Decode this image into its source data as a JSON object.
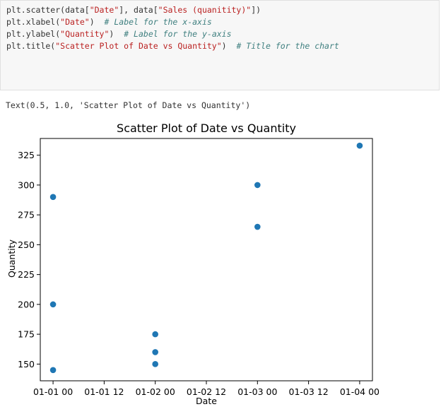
{
  "code_cell": {
    "lines": [
      {
        "parts": [
          {
            "t": "plt.scatter(data[",
            "c": "fn"
          },
          {
            "t": "\"Date\"",
            "c": "str"
          },
          {
            "t": "], data[",
            "c": "fn"
          },
          {
            "t": "\"Sales (quanitity)\"",
            "c": "str"
          },
          {
            "t": "])",
            "c": "fn"
          }
        ]
      },
      {
        "parts": [
          {
            "t": "plt.xlabel(",
            "c": "fn"
          },
          {
            "t": "\"Date\"",
            "c": "str"
          },
          {
            "t": ")  ",
            "c": "fn"
          },
          {
            "t": "# Label for the x-axis",
            "c": "cmt"
          }
        ]
      },
      {
        "parts": [
          {
            "t": "plt.ylabel(",
            "c": "fn"
          },
          {
            "t": "\"Quantity\"",
            "c": "str"
          },
          {
            "t": ")  ",
            "c": "fn"
          },
          {
            "t": "# Label for the y-axis",
            "c": "cmt"
          }
        ]
      },
      {
        "parts": [
          {
            "t": "plt.title(",
            "c": "fn"
          },
          {
            "t": "\"Scatter Plot of Date vs Quantity\"",
            "c": "str"
          },
          {
            "t": ")  ",
            "c": "fn"
          },
          {
            "t": "# Title for the chart",
            "c": "cmt"
          }
        ]
      }
    ]
  },
  "output": {
    "text": "Text(0.5, 1.0, 'Scatter Plot of Date vs Quantity')"
  },
  "chart_data": {
    "type": "scatter",
    "title": "Scatter Plot of Date vs Quantity",
    "xlabel": "Date",
    "ylabel": "Quantity",
    "marker_color": "#1f77b4",
    "xlim": [
      "2000-12-31 21:00",
      "2001-01-04 03:00"
    ],
    "ylim": [
      136,
      339
    ],
    "x_ticks": [
      "01-01 00",
      "01-01 12",
      "01-02 00",
      "01-02 12",
      "01-03 00",
      "01-03 12",
      "01-04 00"
    ],
    "y_ticks": [
      150,
      175,
      200,
      225,
      250,
      275,
      300,
      325
    ],
    "x_tick_hours": [
      0,
      12,
      24,
      36,
      48,
      60,
      72
    ],
    "points": [
      {
        "x": "01-01 00",
        "y": 290
      },
      {
        "x": "01-01 00",
        "y": 200
      },
      {
        "x": "01-01 00",
        "y": 145
      },
      {
        "x": "01-02 00",
        "y": 175
      },
      {
        "x": "01-02 00",
        "y": 160
      },
      {
        "x": "01-02 00",
        "y": 150
      },
      {
        "x": "01-03 00",
        "y": 300
      },
      {
        "x": "01-03 00",
        "y": 265
      },
      {
        "x": "01-04 00",
        "y": 333
      }
    ],
    "grid": false
  }
}
